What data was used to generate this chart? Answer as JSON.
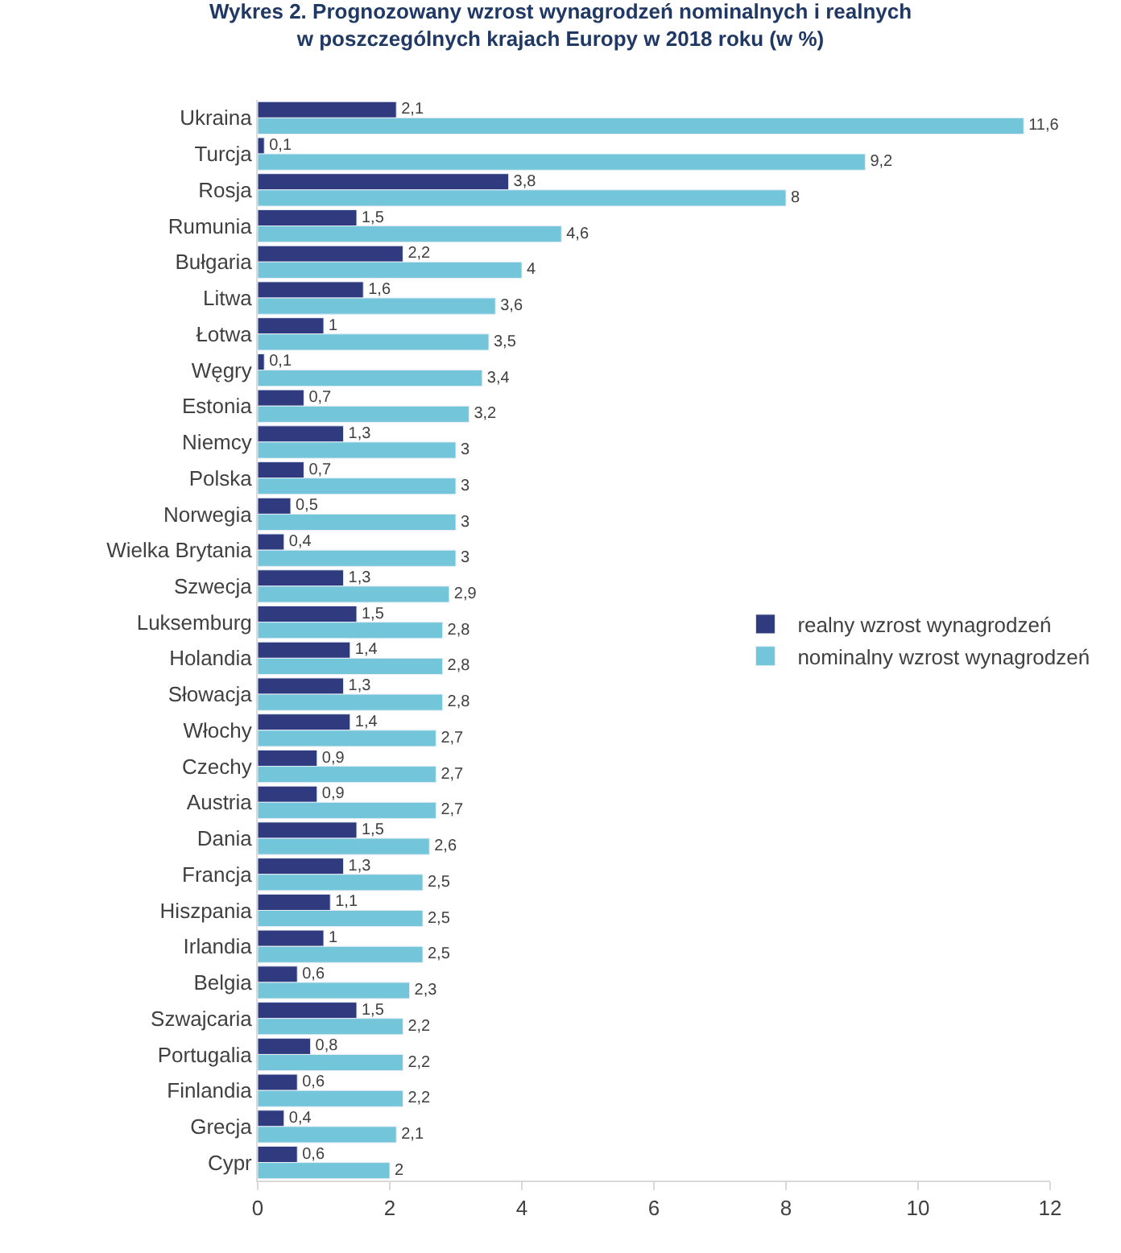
{
  "chart_data": {
    "type": "bar",
    "orientation": "horizontal",
    "title": "Wykres 2. Prognozowany wzrost wynagrodzeń nominalnych i realnych\nw poszczególnych krajach Europy w 2018 roku (w %)",
    "categories": [
      "Ukraina",
      "Turcja",
      "Rosja",
      "Rumunia",
      "Bułgaria",
      "Litwa",
      "Łotwa",
      "Węgry",
      "Estonia",
      "Niemcy",
      "Polska",
      "Norwegia",
      "Wielka Brytania",
      "Szwecja",
      "Luksemburg",
      "Holandia",
      "Słowacja",
      "Włochy",
      "Czechy",
      "Austria",
      "Dania",
      "Francja",
      "Hiszpania",
      "Irlandia",
      "Belgia",
      "Szwajcaria",
      "Portugalia",
      "Finlandia",
      "Grecja",
      "Cypr"
    ],
    "series": [
      {
        "name": "realny wzrost wynagrodzeń",
        "color": "#2f3b7e",
        "values": [
          2.1,
          0.1,
          3.8,
          1.5,
          2.2,
          1.6,
          1,
          0.1,
          0.7,
          1.3,
          0.7,
          0.5,
          0.4,
          1.3,
          1.5,
          1.4,
          1.3,
          1.4,
          0.9,
          0.9,
          1.5,
          1.3,
          1.1,
          1,
          0.6,
          1.5,
          0.8,
          0.6,
          0.4,
          0.6
        ],
        "value_labels": [
          "2,1",
          "0,1",
          "3,8",
          "1,5",
          "2,2",
          "1,6",
          "1",
          "0,1",
          "0,7",
          "1,3",
          "0,7",
          "0,5",
          "0,4",
          "1,3",
          "1,5",
          "1,4",
          "1,3",
          "1,4",
          "0,9",
          "0,9",
          "1,5",
          "1,3",
          "1,1",
          "1",
          "0,6",
          "1,5",
          "0,8",
          "0,6",
          "0,4",
          "0,6"
        ]
      },
      {
        "name": "nominalny wzrost wynagrodzeń",
        "color": "#73c6d9",
        "values": [
          11.6,
          9.2,
          8,
          4.6,
          4,
          3.6,
          3.5,
          3.4,
          3.2,
          3,
          3,
          3,
          3,
          2.9,
          2.8,
          2.8,
          2.8,
          2.7,
          2.7,
          2.7,
          2.6,
          2.5,
          2.5,
          2.5,
          2.3,
          2.2,
          2.2,
          2.2,
          2.1,
          2
        ],
        "value_labels": [
          "11,6",
          "9,2",
          "8",
          "4,6",
          "4",
          "3,6",
          "3,5",
          "3,4",
          "3,2",
          "3",
          "3",
          "3",
          "3",
          "2,9",
          "2,8",
          "2,8",
          "2,8",
          "2,7",
          "2,7",
          "2,7",
          "2,6",
          "2,5",
          "2,5",
          "2,5",
          "2,3",
          "2,2",
          "2,2",
          "2,2",
          "2,1",
          "2"
        ]
      }
    ],
    "xlim": [
      0,
      12
    ],
    "xticks": [
      0,
      2,
      4,
      6,
      8,
      10,
      12
    ],
    "legend": "right"
  }
}
